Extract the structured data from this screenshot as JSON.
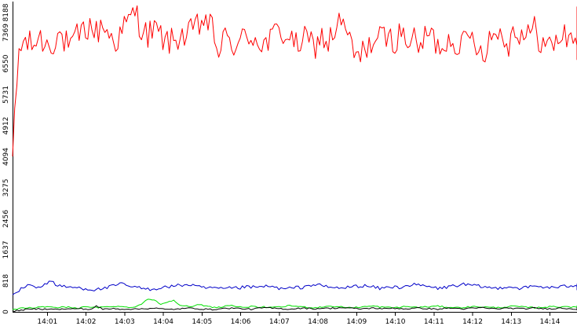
{
  "chart_data": {
    "type": "line",
    "title": "",
    "xlabel": "",
    "ylabel": "",
    "grid": false,
    "legend": "none",
    "xlim": [
      "14:00:06",
      "14:14:42"
    ],
    "ylim": [
      0,
      8188
    ],
    "y_ticks": [
      "0",
      "818",
      "1637",
      "2456",
      "3275",
      "4094",
      "4912",
      "5731",
      "6550",
      "7369",
      "8188"
    ],
    "x_ticks": [
      "14:01",
      "14:02",
      "14:03",
      "14:04",
      "14:05",
      "14:06",
      "14:07",
      "14:08",
      "14:09",
      "14:10",
      "14:11",
      "14:12",
      "14:13",
      "14:14"
    ],
    "series": [
      {
        "color": "#ff0000",
        "start": "14:00:06",
        "step_seconds": 10,
        "values": [
          4100,
          6900,
          7150,
          7000,
          7250,
          7100,
          7050,
          7350,
          7150,
          6900,
          7250,
          7400,
          7550,
          7350,
          7600,
          7300,
          7150,
          7400,
          7650,
          7950,
          7500,
          7300,
          7450,
          7250,
          7150,
          7100,
          7350,
          7200,
          7450,
          7550,
          7750,
          7400,
          6900,
          7200,
          7100,
          7000,
          7250,
          7300,
          7200,
          7050,
          7150,
          7400,
          7350,
          7250,
          7000,
          7200,
          7100,
          7050,
          7250,
          7100,
          7400,
          7700,
          7250,
          6800,
          6700,
          7050,
          7100,
          7200,
          7250,
          7150,
          7300,
          7250,
          7200,
          6950,
          7250,
          7300,
          7000,
          7100,
          7200,
          7150,
          7050,
          7300,
          7100,
          6850,
          7200,
          7400,
          7300,
          7100,
          7500,
          7350,
          7300,
          7450,
          7150,
          7000,
          7050,
          7300,
          7250,
          7300,
          7150,
          7050,
          7200,
          6950,
          7100,
          7000,
          7150,
          7000,
          7150,
          7300,
          7250,
          7100,
          7200,
          7300,
          7250,
          7150,
          7100,
          7050,
          7150,
          6950,
          7200,
          7300,
          7100,
          7150,
          7000,
          7100,
          7250,
          7200,
          7000,
          7100,
          7300,
          7400,
          7550,
          7650,
          7500,
          7350,
          7200,
          7150,
          7000,
          7100,
          7250,
          7200,
          7000,
          7150,
          7100,
          7200,
          6950,
          7050,
          7150,
          7250,
          7100,
          7000,
          7150,
          7050,
          7100,
          6800,
          7050,
          7200,
          7250,
          7450,
          7700,
          7300,
          7050,
          7000,
          7100,
          7150,
          7000,
          7100,
          7200,
          7100,
          6900,
          7050,
          7200,
          7150,
          7350,
          7600,
          7800,
          7650,
          7350,
          7600,
          7700,
          7500,
          7200,
          7000,
          7050
        ]
      },
      {
        "color": "#0000c8",
        "start": "14:00:06",
        "step_seconds": 10,
        "values": [
          450,
          560,
          680,
          700,
          650,
          720,
          820,
          690,
          660,
          650,
          640,
          620,
          600,
          580,
          620,
          650,
          700,
          740,
          680,
          650,
          620,
          600,
          610,
          640,
          660,
          680,
          700,
          720,
          700,
          650,
          620,
          640,
          600,
          610,
          630,
          620,
          660,
          650,
          640,
          680,
          660,
          640,
          600,
          620,
          640,
          650,
          700,
          720,
          690,
          650,
          640,
          620,
          650,
          670,
          690,
          680,
          650,
          620,
          640,
          660,
          650,
          680,
          720,
          700,
          680,
          650,
          620,
          640,
          680,
          700,
          720,
          700,
          680,
          660,
          640,
          620,
          650,
          670,
          640,
          620,
          650,
          680,
          660,
          650,
          640,
          650,
          680,
          700,
          720,
          690,
          670,
          650,
          640,
          620,
          630,
          650,
          670,
          690,
          680,
          660,
          640,
          620,
          650,
          660,
          650,
          640,
          630,
          650,
          680,
          650,
          640,
          620,
          640,
          650,
          660,
          680,
          660,
          640,
          620,
          650,
          640,
          660,
          680,
          690,
          680,
          660,
          630,
          640,
          650,
          670,
          660,
          650,
          630,
          620,
          640,
          660,
          680,
          700,
          680,
          650,
          640,
          620,
          610,
          630,
          650,
          660,
          640,
          630,
          620,
          640,
          650,
          670,
          660,
          650,
          640,
          630,
          620,
          640,
          660,
          650,
          640,
          620,
          630,
          650,
          680,
          670,
          660,
          640,
          650
        ]
      },
      {
        "color": "#00e000",
        "start": "14:00:06",
        "step_seconds": 10,
        "values": [
          60,
          80,
          110,
          100,
          120,
          130,
          140,
          110,
          130,
          120,
          100,
          120,
          130,
          110,
          120,
          140,
          150,
          130,
          120,
          140,
          200,
          350,
          300,
          210,
          250,
          320,
          180,
          150,
          130,
          200,
          150,
          130,
          120,
          150,
          180,
          120,
          130,
          140,
          120,
          130,
          110,
          120,
          140,
          160,
          150,
          130,
          120,
          110,
          130,
          150,
          140,
          130,
          120,
          110,
          130,
          140,
          150,
          130,
          120,
          110,
          120,
          140,
          130,
          120,
          130,
          140,
          150,
          130,
          120,
          110,
          120,
          130,
          140,
          130,
          120,
          110,
          120,
          140,
          150,
          130,
          120,
          110,
          120,
          130,
          140,
          130,
          150,
          120,
          110,
          120,
          130,
          140,
          120,
          110,
          120,
          130,
          140,
          150,
          130,
          120,
          110,
          120,
          130,
          140,
          130,
          120,
          110,
          120,
          130,
          150,
          140,
          120,
          110,
          120,
          130,
          140,
          130,
          120,
          110,
          120,
          130,
          140,
          130,
          120,
          110,
          120,
          130,
          140,
          130,
          120,
          110,
          120,
          130,
          140,
          130,
          120,
          110,
          120,
          130,
          140,
          130,
          120,
          110,
          120,
          130,
          140,
          130,
          120,
          110,
          120,
          130,
          140,
          130,
          120,
          110,
          120,
          130,
          140,
          130,
          120,
          110,
          120,
          130,
          140,
          130,
          120,
          110,
          120,
          130
        ]
      },
      {
        "color": "#000000",
        "start": "14:00:06",
        "step_seconds": 10,
        "values": [
          20,
          40,
          60,
          70,
          80,
          70,
          90,
          60,
          80,
          70,
          90,
          80,
          60,
          150,
          70,
          80,
          90,
          70,
          80,
          70,
          80,
          90,
          100,
          80,
          60,
          70,
          80,
          90,
          100,
          80,
          70,
          60,
          80,
          90,
          100,
          90,
          80,
          70,
          90,
          110,
          100,
          90,
          80,
          70,
          90,
          100,
          90,
          80,
          100,
          90,
          100,
          110,
          100,
          90,
          80,
          90,
          100,
          90,
          80,
          100,
          90,
          80,
          90,
          100,
          90,
          80,
          70,
          90,
          100,
          90,
          80,
          90,
          100,
          110,
          90,
          80,
          90,
          100,
          90,
          80,
          90,
          100,
          90,
          80,
          90,
          100,
          90,
          80,
          70,
          80,
          90,
          100,
          90,
          80,
          90,
          100,
          90,
          80,
          90,
          100,
          110,
          100,
          90,
          80,
          90,
          100,
          90,
          80,
          90,
          100,
          90,
          80,
          90,
          100,
          90,
          80,
          70,
          90,
          100,
          90,
          80,
          90,
          100,
          90,
          80,
          90,
          100,
          90,
          80,
          90,
          100,
          90,
          80,
          90,
          100,
          90,
          80,
          90,
          100,
          90,
          80,
          90,
          100,
          90,
          80,
          90,
          100,
          90,
          80,
          90,
          100,
          90,
          80,
          90,
          100,
          90,
          80,
          90,
          100,
          90,
          80,
          90,
          100,
          90,
          80,
          90,
          100,
          90,
          80
        ]
      }
    ]
  }
}
